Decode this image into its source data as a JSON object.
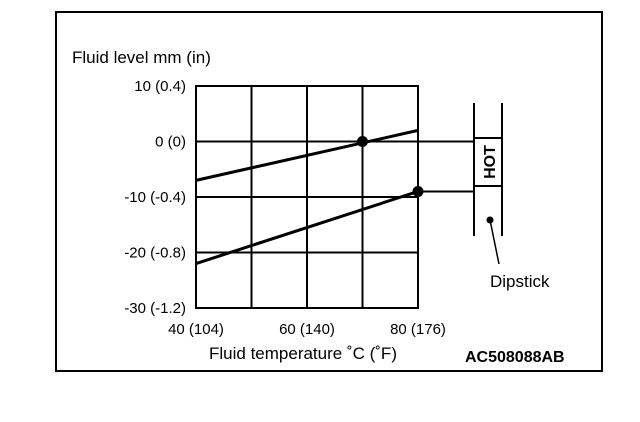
{
  "chart_data": {
    "type": "line",
    "title": "",
    "ylabel": "Fluid level mm (in)",
    "xlabel": "Fluid temperature ˚C (˚F)",
    "x_ticks": [
      {
        "value": 40,
        "label": "40 (104)"
      },
      {
        "value": 60,
        "label": "60 (140)"
      },
      {
        "value": 80,
        "label": "80 (176)"
      }
    ],
    "y_ticks": [
      {
        "value": 10,
        "label": "10 (0.4)"
      },
      {
        "value": 0,
        "label": "0 (0)"
      },
      {
        "value": -10,
        "label": "-10 (-0.4)"
      },
      {
        "value": -20,
        "label": "-20 (-0.8)"
      },
      {
        "value": -30,
        "label": "-30 (-1.2)"
      }
    ],
    "xlim": [
      40,
      80
    ],
    "ylim": [
      -30,
      10
    ],
    "grid": true,
    "series": [
      {
        "x": [
          40,
          80
        ],
        "y": [
          -7,
          2
        ]
      },
      {
        "x": [
          40,
          80
        ],
        "y": [
          -22,
          -9
        ]
      }
    ],
    "markers": [
      {
        "x": 70,
        "y": 0
      },
      {
        "x": 80,
        "y": -9
      }
    ],
    "dipstick": {
      "label": "Dipstick",
      "band_label": "HOT"
    },
    "figure_code": "AC508088AB"
  }
}
